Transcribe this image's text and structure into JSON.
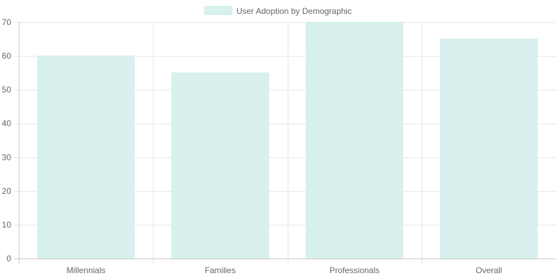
{
  "chart_data": {
    "type": "bar",
    "categories": [
      "Millennials",
      "Families",
      "Professionals",
      "Overall"
    ],
    "series": [
      {
        "name": "User Adoption by Demographic",
        "values": [
          60,
          55,
          70,
          65
        ]
      }
    ],
    "title": "",
    "xlabel": "",
    "ylabel": "",
    "ylim": [
      0,
      70
    ],
    "yticks": [
      0,
      10,
      20,
      30,
      40,
      50,
      60,
      70
    ],
    "grid": true,
    "legend_position": "top",
    "colors": {
      "bar_fill": "#d9f1ee",
      "bar_stroke": "#cfece8",
      "grid": "#e6e6e6",
      "axis": "#c8c8c8",
      "text": "#666666"
    }
  }
}
